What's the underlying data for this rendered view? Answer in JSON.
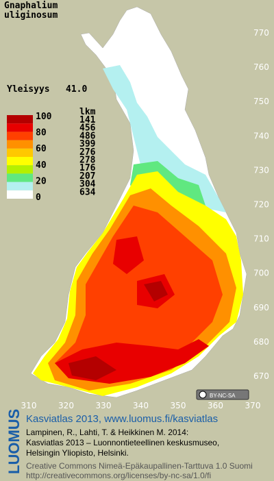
{
  "title": [
    "Gnaphalium",
    "uliginosum"
  ],
  "frequency": {
    "label": "Yleisyys",
    "value": "41.0"
  },
  "legend": {
    "count_header": "lkm",
    "scale_labels": [
      100,
      80,
      60,
      40,
      20,
      0
    ],
    "counts": [
      141,
      456,
      486,
      399,
      276,
      278,
      176,
      207,
      304,
      634
    ],
    "colors": [
      "#b40000",
      "#e80000",
      "#ff4000",
      "#ff9000",
      "#ffc800",
      "#ffff00",
      "#b4f000",
      "#60e880",
      "#b4f0f0",
      "#ffffff"
    ]
  },
  "y_axis": {
    "ticks": [
      770,
      760,
      750,
      740,
      730,
      720,
      710,
      700,
      690,
      680,
      670
    ]
  },
  "x_axis": {
    "ticks": [
      310,
      320,
      330,
      340,
      350,
      360,
      370
    ]
  },
  "license_badge": "BY-NC-SA",
  "footer": {
    "brand": "LUOMUS",
    "headline": "Kasviatlas 2013, www.luomus.fi/kasviatlas",
    "citation": [
      "Lampinen, R., Lahti, T. & Heikkinen M. 2014:",
      "Kasviatlas 2013 – Luonnontieteellinen keskusmuseo,",
      "Helsingin Yliopisto, Helsinki."
    ],
    "license": [
      "Creative Commons Nimeä-Epäkaupallinen-Tarttuva 1.0 Suomi",
      "http://creativecommons.org/licenses/by-nc-sa/1.0/fi"
    ]
  }
}
